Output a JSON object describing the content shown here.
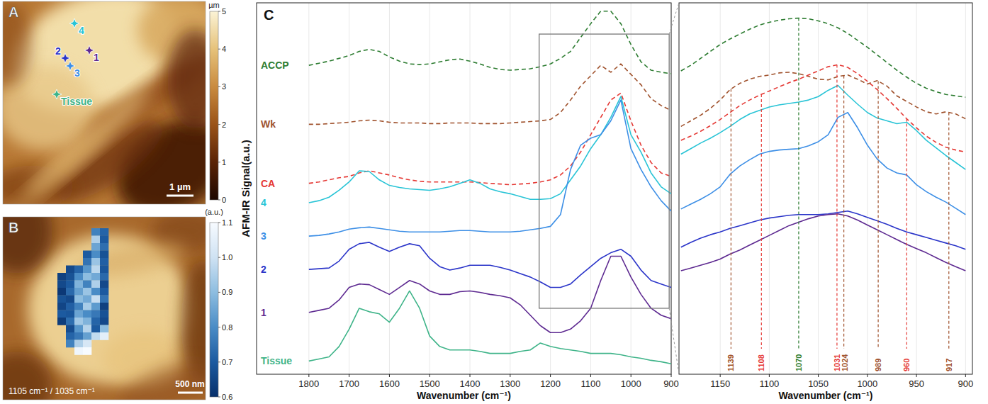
{
  "chart_data": [
    {
      "type": "image",
      "letter": "A",
      "colorbar": {
        "label": "µm",
        "lim": [
          0,
          5
        ],
        "ticks": [
          0,
          1,
          2,
          3,
          4,
          5
        ]
      },
      "scale_bar": "1 µm",
      "points": [
        "4",
        "2",
        "1",
        "3",
        "Tissue"
      ]
    },
    {
      "type": "heatmap",
      "letter": "B",
      "annotation": "1105 cm⁻¹ / 1035 cm⁻¹",
      "scale_bar": "500 nm",
      "cells": [
        [
          null,
          null,
          null,
          null,
          0.78,
          0.72
        ],
        [
          null,
          null,
          null,
          null,
          0.95,
          0.7
        ],
        [
          null,
          null,
          null,
          null,
          0.85,
          0.74
        ],
        [
          null,
          null,
          null,
          0.7,
          0.8,
          0.68
        ],
        [
          null,
          null,
          null,
          0.75,
          0.92,
          0.71
        ],
        [
          null,
          0.66,
          0.72,
          0.82,
          0.97,
          0.69
        ],
        [
          0.64,
          0.68,
          0.8,
          0.9,
          0.86,
          0.73
        ],
        [
          0.66,
          0.7,
          0.88,
          0.78,
          0.95,
          0.66
        ],
        [
          0.62,
          0.73,
          0.84,
          0.92,
          0.8,
          0.7
        ],
        [
          0.68,
          0.66,
          0.9,
          0.86,
          0.99,
          0.75
        ],
        [
          0.65,
          0.71,
          0.78,
          0.94,
          0.83,
          0.64
        ],
        [
          0.7,
          0.69,
          0.85,
          0.8,
          0.76,
          0.68
        ],
        [
          0.63,
          0.74,
          0.93,
          0.88,
          0.72,
          0.66
        ],
        [
          null,
          0.67,
          0.82,
          0.96,
          0.7,
          0.9
        ],
        [
          null,
          0.72,
          0.76,
          0.84,
          0.98,
          1.05
        ],
        [
          null,
          0.78,
          0.95,
          1.02,
          null,
          null
        ],
        [
          null,
          null,
          1.08,
          1.1,
          null,
          null
        ]
      ],
      "colorbar": {
        "label": "(a.u.)",
        "lim": [
          0.6,
          1.1
        ],
        "ticks": [
          0.6,
          0.7,
          0.8,
          0.9,
          {
            "value": 1,
            "label": "1.0"
          },
          1.1
        ]
      }
    },
    {
      "type": "line",
      "letter": "C",
      "x_label": "Wavenumber (cm⁻¹)",
      "y_label": "AFM-IR Signal(a.u.)",
      "xlim": [
        1930,
        900
      ],
      "ylim": [
        0,
        535
      ],
      "xticks": [
        1800,
        1700,
        1600,
        1500,
        1400,
        1300,
        1200,
        1100,
        1000,
        900
      ],
      "tick_labels": "x",
      "grid": true,
      "x": [
        1800,
        1775,
        1750,
        1725,
        1700,
        1675,
        1650,
        1625,
        1600,
        1575,
        1550,
        1525,
        1500,
        1475,
        1450,
        1425,
        1400,
        1375,
        1350,
        1325,
        1300,
        1275,
        1250,
        1225,
        1200,
        1175,
        1150,
        1125,
        1100,
        1075,
        1050,
        1025,
        1000,
        975,
        950,
        925,
        900
      ],
      "series": [
        {
          "name": "ACCP",
          "color": "#2e7d32",
          "line_style": "dashed",
          "values": [
            445,
            448,
            451,
            455,
            459,
            465,
            468,
            465,
            457,
            451,
            447,
            446,
            447,
            450,
            453,
            454,
            451,
            447,
            442,
            439,
            438,
            439,
            440,
            443,
            447,
            455,
            465,
            485,
            505,
            523,
            523,
            505,
            475,
            450,
            438,
            435,
            433
          ]
        },
        {
          "name": "Wk",
          "color": "#a0522d",
          "line_style": "dashed",
          "values": [
            360,
            360,
            361,
            362,
            363,
            365,
            366,
            365,
            363,
            362,
            362,
            362,
            361,
            361,
            362,
            362,
            362,
            361,
            361,
            361,
            362,
            363,
            364,
            365,
            367,
            377,
            395,
            415,
            430,
            445,
            435,
            447,
            432,
            417,
            397,
            387,
            380
          ]
        },
        {
          "name": "CA",
          "color": "#e53935",
          "line_style": "dashed",
          "values": [
            275,
            277,
            280,
            283,
            285,
            290,
            293,
            290,
            287,
            283,
            280,
            278,
            277,
            277,
            277,
            277,
            277,
            276,
            275,
            274,
            273,
            274,
            275,
            277,
            280,
            287,
            300,
            320,
            345,
            370,
            395,
            405,
            365,
            330,
            305,
            290,
            285
          ]
        },
        {
          "name": "4",
          "color": "#29c4d6",
          "line_style": "solid",
          "values": [
            247,
            250,
            255,
            265,
            277,
            293,
            292,
            280,
            272,
            269,
            267,
            266,
            265,
            267,
            270,
            275,
            280,
            275,
            267,
            263,
            260,
            256,
            252,
            252,
            253,
            260,
            280,
            300,
            325,
            345,
            370,
            400,
            345,
            320,
            290,
            270,
            260
          ]
        },
        {
          "name": "3",
          "color": "#3d8fe6",
          "line_style": "solid",
          "values": [
            199,
            200,
            202,
            205,
            209,
            211,
            212,
            210,
            208,
            206,
            205,
            205,
            205,
            205,
            206,
            207,
            207,
            206,
            205,
            205,
            205,
            206,
            208,
            210,
            213,
            230,
            295,
            330,
            340,
            345,
            365,
            395,
            325,
            295,
            270,
            250,
            235
          ]
        },
        {
          "name": "2",
          "color": "#2b35c9",
          "line_style": "solid",
          "values": [
            151,
            152,
            153,
            163,
            180,
            188,
            190,
            183,
            177,
            183,
            188,
            185,
            167,
            155,
            150,
            153,
            157,
            157,
            157,
            154,
            150,
            145,
            140,
            133,
            125,
            125,
            130,
            143,
            155,
            167,
            175,
            180,
            170,
            150,
            135,
            130,
            125
          ]
        },
        {
          "name": "1",
          "color": "#5e2a91",
          "line_style": "solid",
          "values": [
            89,
            92,
            95,
            107,
            125,
            130,
            129,
            122,
            115,
            125,
            135,
            130,
            120,
            115,
            115,
            119,
            120,
            118,
            115,
            113,
            110,
            100,
            85,
            70,
            60,
            60,
            65,
            77,
            95,
            135,
            170,
            170,
            140,
            115,
            95,
            85,
            80
          ]
        },
        {
          "name": "Tissue",
          "color": "#3fb489",
          "line_style": "solid",
          "values": [
            19,
            22,
            25,
            40,
            65,
            95,
            90,
            87,
            75,
            95,
            120,
            95,
            55,
            40,
            35,
            35,
            35,
            33,
            30,
            30,
            30,
            33,
            35,
            45,
            40,
            37,
            35,
            33,
            30,
            30,
            30,
            28,
            25,
            23,
            20,
            18,
            15
          ]
        }
      ],
      "zoom_box": {
        "x": [
          1228,
          905
        ],
        "y": [
          95,
          490
        ]
      }
    },
    {
      "type": "line",
      "x_label": "Wavenumber (cm⁻¹)",
      "xlim": [
        1192,
        893
      ],
      "ylim": [
        0,
        535
      ],
      "xticks": [
        1150,
        1100,
        1050,
        1000,
        950,
        900
      ],
      "tick_labels": "x",
      "grid": true,
      "x": [
        1190,
        1180,
        1170,
        1160,
        1150,
        1140,
        1130,
        1120,
        1110,
        1100,
        1090,
        1080,
        1070,
        1060,
        1050,
        1040,
        1030,
        1020,
        1010,
        1000,
        990,
        980,
        970,
        960,
        950,
        940,
        930,
        920,
        910,
        900
      ],
      "series": [
        {
          "color": "#2e7d32",
          "line_style": "dashed",
          "values": [
            437,
            445,
            455,
            465,
            475,
            483,
            490,
            497,
            503,
            507,
            510,
            512,
            513,
            512,
            509,
            505,
            499,
            491,
            481,
            471,
            460,
            449,
            438,
            428,
            419,
            412,
            407,
            403,
            401,
            399
          ]
        },
        {
          "color": "#a0522d",
          "line_style": "dashed",
          "values": [
            357,
            365,
            373,
            383,
            395,
            410,
            419,
            425,
            429,
            431,
            434,
            435,
            433,
            429,
            425,
            424,
            429,
            431,
            425,
            418,
            423,
            415,
            401,
            393,
            385,
            378,
            375,
            378,
            375,
            368
          ]
        },
        {
          "color": "#e53935",
          "line_style": "dashed",
          "values": [
            337,
            343,
            350,
            358,
            367,
            377,
            387,
            395,
            402,
            408,
            414,
            420,
            425,
            431,
            437,
            443,
            446,
            442,
            433,
            422,
            410,
            397,
            383,
            368,
            355,
            343,
            334,
            327,
            323,
            320
          ]
        },
        {
          "color": "#29c4d6",
          "line_style": "solid",
          "values": [
            317,
            325,
            333,
            340,
            348,
            357,
            367,
            375,
            380,
            385,
            388,
            390,
            392,
            395,
            400,
            409,
            416,
            402,
            389,
            377,
            369,
            365,
            361,
            363,
            351,
            337,
            326,
            315,
            305,
            295
          ]
        },
        {
          "color": "#3d8fe6",
          "line_style": "solid",
          "values": [
            238,
            245,
            252,
            260,
            270,
            288,
            300,
            309,
            317,
            321,
            323,
            324,
            325,
            329,
            335,
            345,
            370,
            377,
            355,
            330,
            310,
            297,
            290,
            287,
            273,
            263,
            255,
            248,
            239,
            230
          ]
        },
        {
          "color": "#2b35c9",
          "line_style": "solid",
          "values": [
            183,
            190,
            196,
            201,
            205,
            210,
            214,
            218,
            222,
            225,
            227,
            229,
            230,
            230,
            230,
            231,
            233,
            235,
            231,
            226,
            221,
            216,
            210,
            205,
            201,
            197,
            193,
            189,
            185,
            180
          ]
        },
        {
          "color": "#5e2a91",
          "line_style": "solid",
          "values": [
            149,
            153,
            157,
            161,
            166,
            173,
            179,
            186,
            193,
            200,
            207,
            214,
            219,
            224,
            228,
            230,
            231,
            228,
            222,
            215,
            208,
            201,
            194,
            187,
            181,
            175,
            168,
            161,
            155,
            149
          ]
        }
      ],
      "peaks": [
        {
          "x": 1139,
          "color": "#a0522d"
        },
        {
          "x": 1108,
          "color": "#e53935"
        },
        {
          "x": 1070,
          "color": "#2e7d32"
        },
        {
          "x": 1031,
          "color": "#e53935"
        },
        {
          "x": 1024,
          "color": "#a0522d"
        },
        {
          "x": 989,
          "color": "#a0522d"
        },
        {
          "x": 960,
          "color": "#e53935"
        },
        {
          "x": 917,
          "color": "#a0522d"
        }
      ]
    }
  ]
}
